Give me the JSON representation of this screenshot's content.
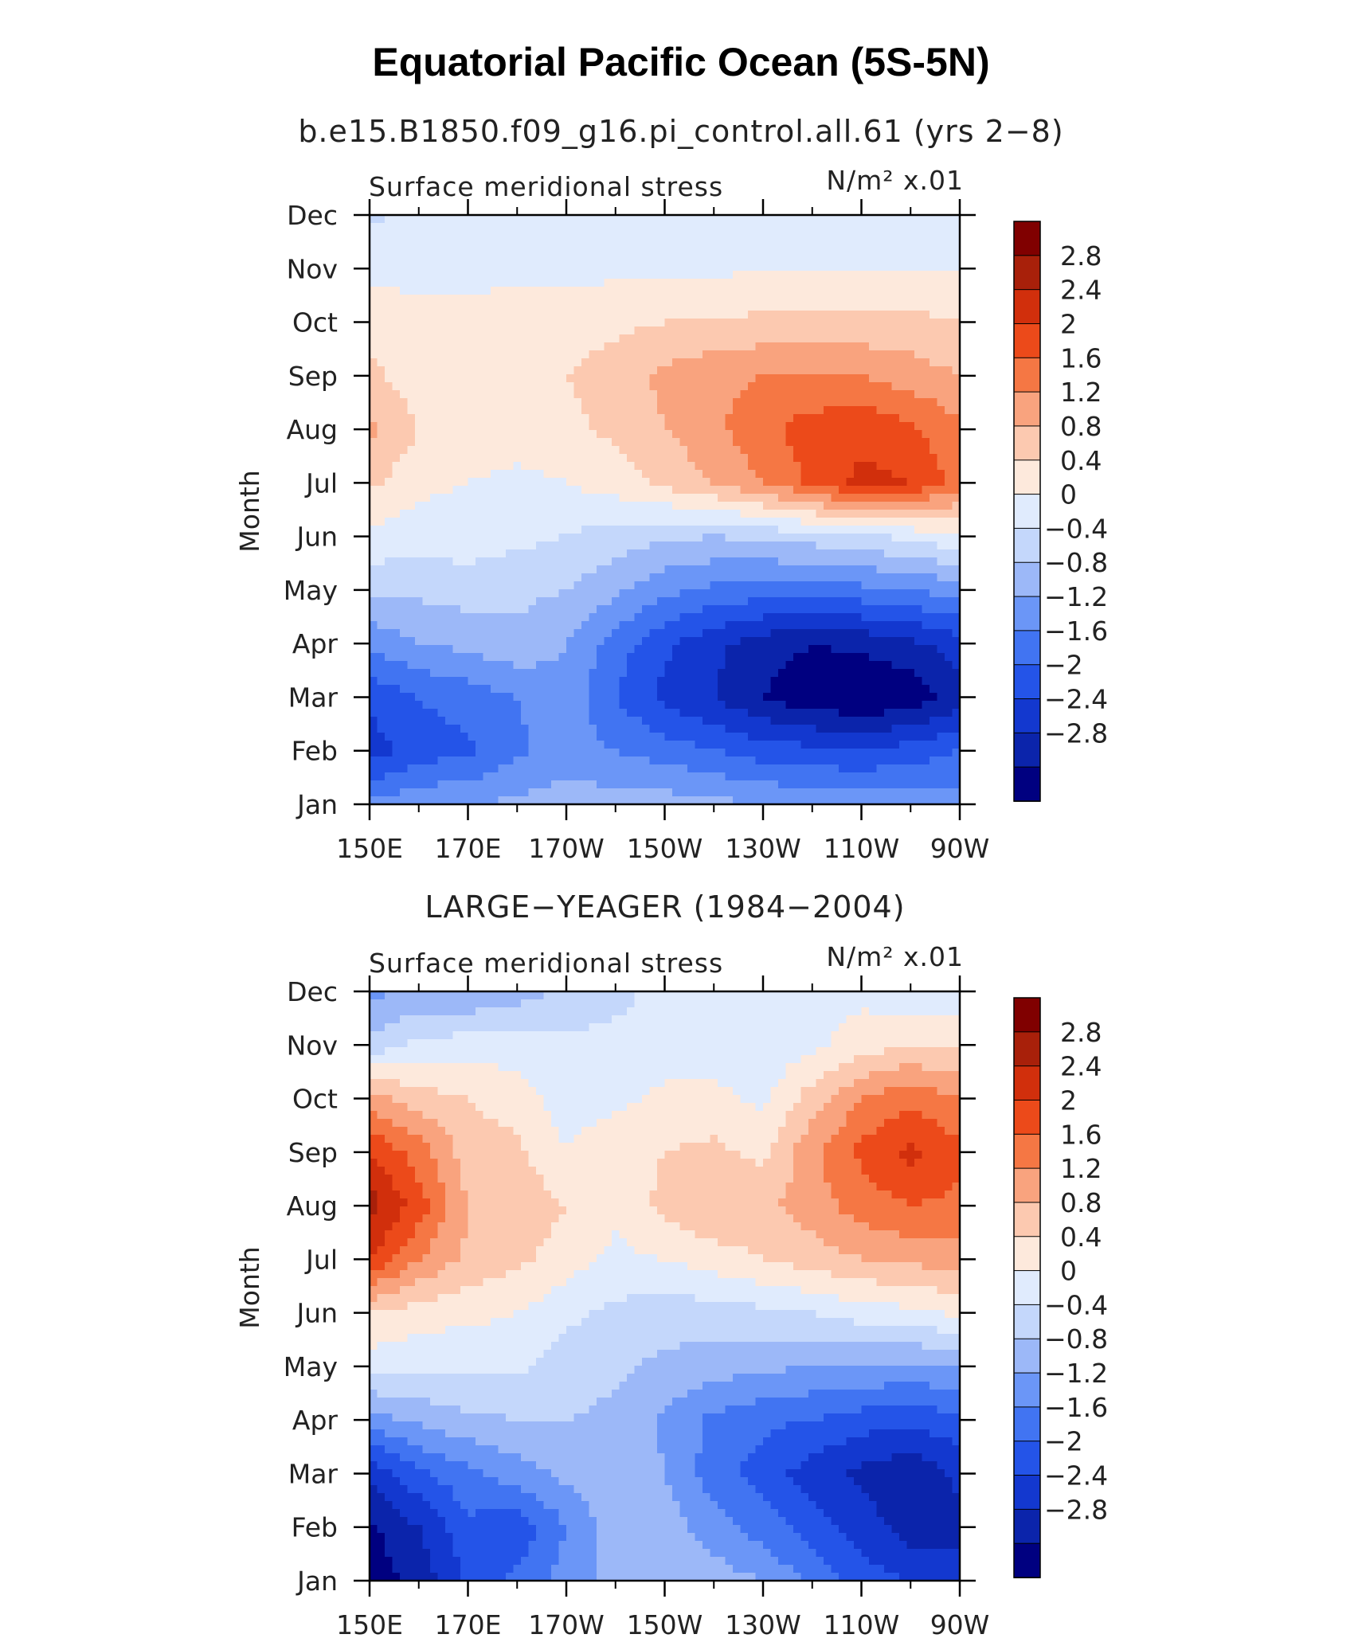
{
  "figure": {
    "title": "Equatorial Pacific Ocean (5S-5N)"
  },
  "chart_data": [
    {
      "type": "heatmap",
      "title": "b.e15.B1850.f09_g16.pi_control.all.61 (yrs 2−8)",
      "variable_label": "Surface meridional stress",
      "units_label": "N/m² x.01",
      "ylabel": "Month",
      "xlabel": "",
      "x_tick_labels": [
        "150E",
        "170E",
        "170W",
        "150W",
        "130W",
        "110W",
        "90W"
      ],
      "x": [
        150,
        160,
        170,
        180,
        190,
        200,
        210,
        220,
        230,
        240,
        250,
        260,
        270
      ],
      "y": [
        "Jan",
        "Feb",
        "Mar",
        "Apr",
        "May",
        "Jun",
        "Jul",
        "Aug",
        "Sep",
        "Oct",
        "Nov",
        "Dec"
      ],
      "z": [
        [
          -1.1,
          -0.9,
          -0.8,
          -0.7,
          -0.6,
          -0.6,
          -0.6,
          -0.7,
          -0.8,
          -0.9,
          -0.9,
          -1.0,
          -1.0
        ],
        [
          -2.2,
          -1.8,
          -1.7,
          -1.3,
          -1.0,
          -1.2,
          -1.4,
          -1.6,
          -1.8,
          -1.9,
          -2.0,
          -1.8,
          -1.6
        ],
        [
          -1.9,
          -1.6,
          -1.4,
          -1.2,
          -0.9,
          -1.6,
          -2.1,
          -2.4,
          -2.8,
          -3.1,
          -3.2,
          -3.1,
          -2.6
        ],
        [
          -1.1,
          -0.8,
          -0.7,
          -0.5,
          -0.8,
          -1.4,
          -1.9,
          -2.3,
          -2.6,
          -2.8,
          -2.7,
          -2.5,
          -2.2
        ],
        [
          -0.3,
          -0.3,
          -0.2,
          -0.3,
          -0.4,
          -0.7,
          -1.1,
          -1.3,
          -1.4,
          -1.4,
          -1.3,
          -1.2,
          -1.0
        ],
        [
          0.3,
          0.2,
          0.2,
          0.1,
          0.0,
          -0.2,
          -0.3,
          -0.4,
          -0.3,
          -0.2,
          -0.1,
          0.1,
          0.3
        ],
        [
          0.9,
          0.5,
          0.4,
          0.3,
          0.4,
          0.6,
          0.9,
          1.2,
          1.6,
          2.1,
          2.5,
          2.4,
          1.8
        ],
        [
          1.3,
          0.8,
          0.6,
          0.6,
          0.7,
          0.9,
          1.2,
          1.5,
          1.9,
          2.2,
          2.3,
          2.1,
          1.7
        ],
        [
          0.9,
          0.6,
          0.6,
          0.6,
          0.8,
          1.0,
          1.3,
          1.5,
          1.6,
          1.6,
          1.6,
          1.4,
          1.2
        ],
        [
          0.6,
          0.5,
          0.5,
          0.6,
          0.6,
          0.7,
          0.8,
          0.8,
          0.9,
          0.9,
          0.9,
          0.9,
          0.8
        ],
        [
          0.3,
          0.3,
          0.3,
          0.3,
          0.3,
          0.3,
          0.3,
          0.3,
          0.4,
          0.4,
          0.4,
          0.4,
          0.4
        ],
        [
          -0.1,
          0.1,
          0.2,
          0.2,
          0.2,
          0.2,
          0.2,
          0.2,
          0.2,
          0.2,
          0.2,
          0.3,
          0.3
        ]
      ],
      "levels": [
        -2.8,
        -2.4,
        -2,
        -1.6,
        -1.2,
        -0.8,
        -0.4,
        0,
        0.4,
        0.8,
        1.2,
        1.6,
        2,
        2.4,
        2.8
      ],
      "colorbar_labels": [
        "2.8",
        "2.4",
        "2",
        "1.6",
        "1.2",
        "0.8",
        "0.4",
        "0",
        "−0.4",
        "−0.8",
        "−1.2",
        "−1.6",
        "−2",
        "−2.4",
        "−2.8"
      ]
    },
    {
      "type": "heatmap",
      "title": "LARGE−YEAGER (1984−2004)",
      "variable_label": "Surface meridional stress",
      "units_label": "N/m² x.01",
      "ylabel": "Month",
      "xlabel": "",
      "x_tick_labels": [
        "150E",
        "170E",
        "170W",
        "150W",
        "130W",
        "110W",
        "90W"
      ],
      "x": [
        150,
        160,
        170,
        180,
        190,
        200,
        210,
        220,
        230,
        240,
        250,
        260,
        270
      ],
      "y": [
        "Jan",
        "Feb",
        "Mar",
        "Apr",
        "May",
        "Jun",
        "Jul",
        "Aug",
        "Sep",
        "Oct",
        "Nov",
        "Dec"
      ],
      "z": [
        [
          -3.0,
          -2.7,
          -1.9,
          -1.5,
          -1.0,
          -0.7,
          -0.5,
          -0.6,
          -0.8,
          -1.3,
          -1.8,
          -2.0,
          -2.2
        ],
        [
          -2.9,
          -2.4,
          -1.7,
          -1.9,
          -1.2,
          -0.6,
          -0.6,
          -1.0,
          -1.4,
          -1.8,
          -2.2,
          -2.6,
          -2.5
        ],
        [
          -2.3,
          -1.7,
          -1.3,
          -1.0,
          -0.7,
          -0.4,
          -0.8,
          -1.4,
          -1.8,
          -2.2,
          -2.5,
          -2.7,
          -2.3
        ],
        [
          -1.0,
          -0.7,
          -0.5,
          -0.4,
          -0.4,
          -0.5,
          -0.9,
          -1.3,
          -1.5,
          -1.6,
          -1.8,
          -1.9,
          -1.7
        ],
        [
          0.2,
          0.1,
          0.1,
          0.1,
          -0.2,
          -0.3,
          -0.5,
          -0.6,
          -0.7,
          -0.8,
          -0.8,
          -0.9,
          -0.8
        ],
        [
          0.8,
          0.6,
          0.5,
          0.4,
          0.1,
          -0.1,
          -0.2,
          -0.2,
          -0.1,
          0.0,
          0.2,
          0.3,
          0.5
        ],
        [
          2.4,
          1.6,
          1.1,
          0.9,
          0.6,
          0.3,
          0.4,
          0.6,
          0.8,
          1.0,
          1.2,
          1.3,
          1.4
        ],
        [
          3.0,
          2.2,
          1.2,
          1.1,
          0.8,
          0.5,
          0.9,
          1.2,
          1.1,
          1.4,
          1.8,
          2.0,
          1.9
        ],
        [
          2.4,
          1.8,
          1.0,
          0.9,
          0.4,
          0.7,
          0.8,
          0.9,
          0.7,
          1.5,
          2.1,
          2.5,
          2.1
        ],
        [
          1.4,
          1.0,
          0.8,
          0.6,
          0.2,
          0.3,
          0.5,
          0.5,
          0.3,
          1.0,
          1.6,
          1.9,
          1.6
        ],
        [
          -0.3,
          0.1,
          0.2,
          0.2,
          0.1,
          0.1,
          0.2,
          0.2,
          0.1,
          0.3,
          0.6,
          0.8,
          0.7
        ],
        [
          -0.9,
          -0.7,
          -0.8,
          -0.6,
          -0.3,
          -0.1,
          0.1,
          0.2,
          0.2,
          0.2,
          0.3,
          0.1,
          0.1
        ]
      ],
      "levels": [
        -2.8,
        -2.4,
        -2,
        -1.6,
        -1.2,
        -0.8,
        -0.4,
        0,
        0.4,
        0.8,
        1.2,
        1.6,
        2,
        2.4,
        2.8
      ],
      "colorbar_labels": [
        "2.8",
        "2.4",
        "2",
        "1.6",
        "1.2",
        "0.8",
        "0.4",
        "0",
        "−0.4",
        "−0.8",
        "−1.2",
        "−1.6",
        "−2",
        "−2.4",
        "−2.8"
      ]
    }
  ],
  "colors": {
    "palette": [
      "#000080",
      "#0b24ab",
      "#1338cf",
      "#2454e8",
      "#4174f2",
      "#6b96f7",
      "#9cb8f8",
      "#c4d7fb",
      "#e0ebfd",
      "#fde9dc",
      "#fcc9b0",
      "#f9a37e",
      "#f57744",
      "#ec4a1a",
      "#d12f0c",
      "#a8200a",
      "#800000"
    ],
    "axis": "#000000"
  }
}
